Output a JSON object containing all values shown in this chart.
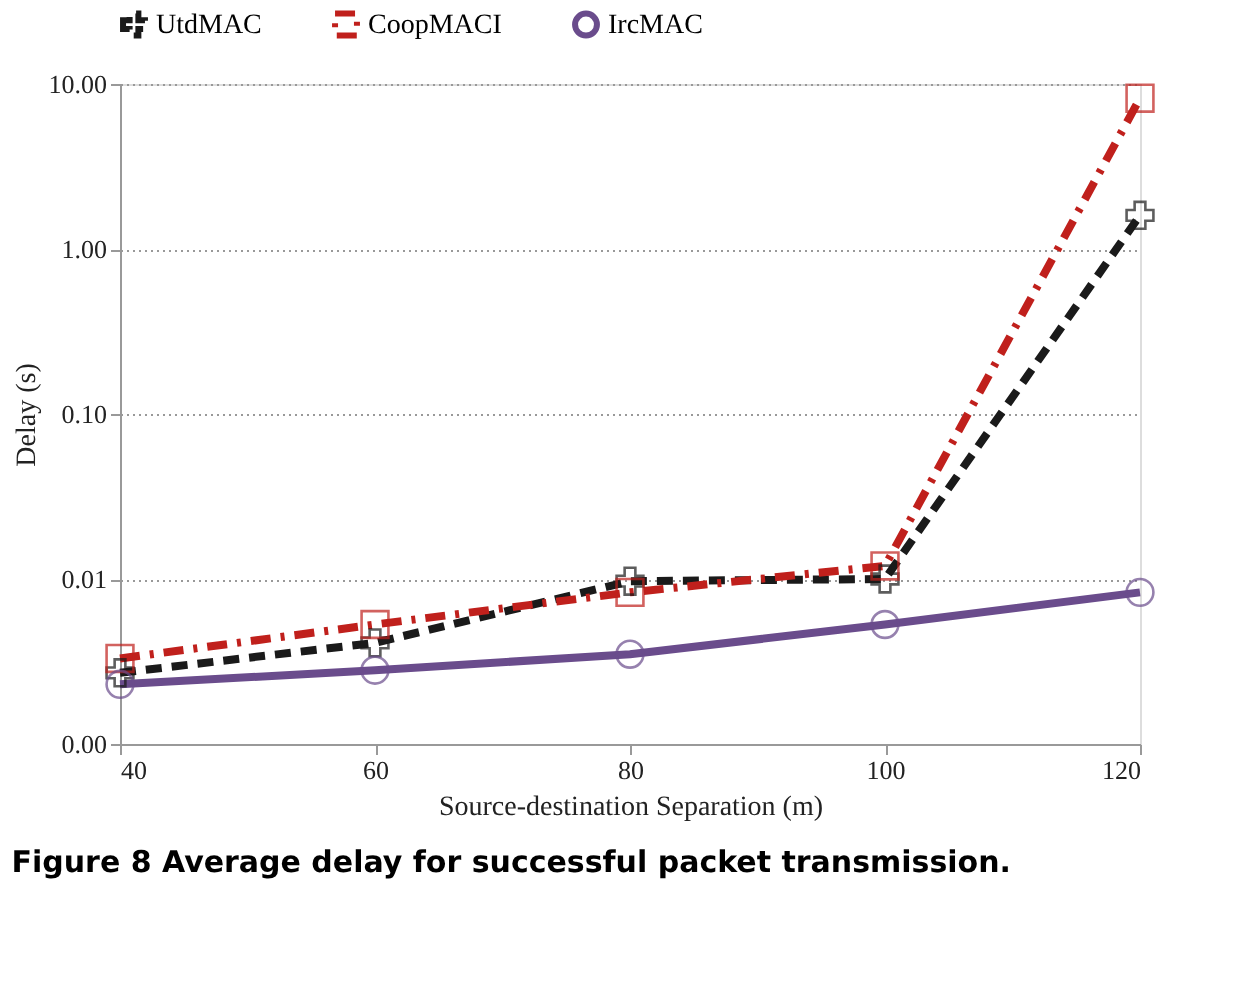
{
  "chart_data": {
    "type": "line",
    "title": "Figure 8 Average delay for successful packet transmission.",
    "xlabel": "Source-destination Separation (m)",
    "ylabel": "Delay (s)",
    "x": [
      40,
      60,
      80,
      100,
      120
    ],
    "series": [
      {
        "name": "UtdMAC",
        "color": "#1a1a1a",
        "marker": "cross",
        "line_style": "dashed",
        "values": [
          0.0027,
          0.0041,
          0.0097,
          0.01,
          1.6
        ]
      },
      {
        "name": "CoopMACI",
        "color": "#c0201c",
        "marker": "square",
        "line_style": "dashdot",
        "values": [
          0.0033,
          0.0053,
          0.0083,
          0.012,
          8.2
        ]
      },
      {
        "name": "IrcMAC",
        "color": "#6a4c8c",
        "marker": "circle",
        "line_style": "solid",
        "values": [
          0.0023,
          0.0028,
          0.0035,
          0.0053,
          0.0083
        ]
      }
    ],
    "xlim": [
      40,
      120
    ],
    "xticks": [
      40,
      60,
      80,
      100,
      120
    ],
    "ylim": [
      0.001,
      10
    ],
    "yticks": [
      {
        "value": 0.001,
        "label": "0.00"
      },
      {
        "value": 0.01,
        "label": "0.01"
      },
      {
        "value": 0.1,
        "label": "0.10"
      },
      {
        "value": 1,
        "label": "1.00"
      },
      {
        "value": 10,
        "label": "10.00"
      }
    ],
    "log": "y",
    "grid": "y",
    "legend": "top"
  }
}
